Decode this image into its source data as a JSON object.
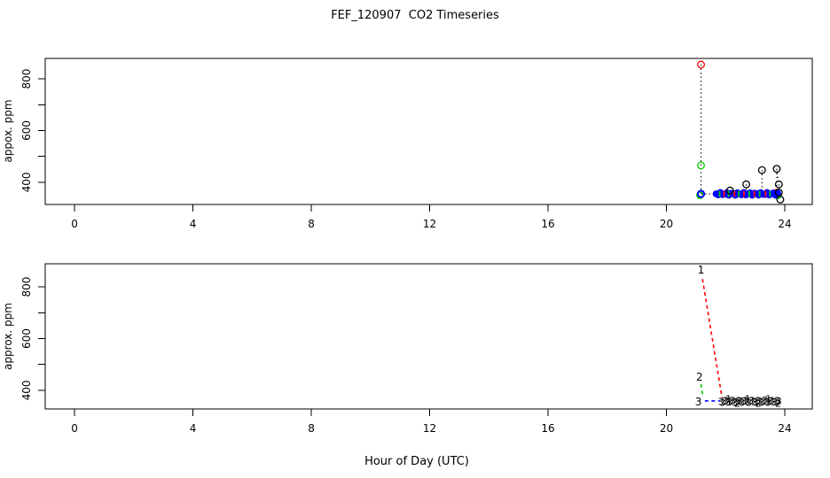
{
  "title": "FEF_120907  CO2 Timeseries",
  "xlabel": "Hour of Day (UTC)",
  "chart_data": [
    {
      "type": "scatter",
      "panel": "top",
      "ylabel": "appox. ppm",
      "xlim": [
        -0.99,
        24.93
      ],
      "ylim": [
        314,
        879
      ],
      "xtick_values": [
        0,
        4,
        8,
        12,
        16,
        20,
        24
      ],
      "xtick_labels": [
        "0",
        "4",
        "8",
        "12",
        "16",
        "20",
        "24"
      ],
      "ytick_values": [
        400,
        500,
        600,
        700,
        800
      ],
      "ytick_labels": [
        "400",
        "",
        "600",
        "",
        "800"
      ],
      "grid": false,
      "dotted_segments": [
        [
          21.17,
          855,
          21.17,
          355
        ],
        [
          21.17,
          355,
          21.72,
          355
        ],
        [
          22.15,
          368,
          22.15,
          356
        ],
        [
          22.7,
          392,
          22.7,
          356
        ],
        [
          23.23,
          447,
          23.23,
          356
        ],
        [
          23.73,
          452,
          23.73,
          356
        ],
        [
          23.73,
          452,
          23.8,
          392
        ],
        [
          23.8,
          392,
          23.85,
          333
        ]
      ],
      "open_points": [
        {
          "x": 21.17,
          "y": 855,
          "color": "#FF0000"
        },
        {
          "x": 21.17,
          "y": 465,
          "color": "#00CD00"
        },
        {
          "x": 22.15,
          "y": 368,
          "color": "#000000"
        },
        {
          "x": 22.7,
          "y": 392,
          "color": "#000000"
        },
        {
          "x": 23.23,
          "y": 447,
          "color": "#000000"
        },
        {
          "x": 23.73,
          "y": 452,
          "color": "#000000"
        },
        {
          "x": 23.8,
          "y": 392,
          "color": "#000000"
        },
        {
          "x": 23.8,
          "y": 360,
          "color": "#000000"
        },
        {
          "x": 23.85,
          "y": 333,
          "color": "#000000"
        }
      ],
      "behind_points": [
        {
          "x": 21.14,
          "y": 350,
          "color": "#00CD00"
        },
        {
          "x": 23.7,
          "y": 359,
          "color": "#FF0000"
        },
        {
          "x": 23.76,
          "y": 349,
          "color": "#00CD00"
        }
      ],
      "band": {
        "y": 355,
        "x_start": 21.68,
        "x_end": 23.76,
        "count": 30,
        "color": "#0000FF",
        "lead_point": {
          "x": 21.17,
          "y": 355
        }
      },
      "band_ticks": [
        {
          "x": 21.8,
          "color": "#00CD00"
        },
        {
          "x": 21.95,
          "color": "#FF0000"
        },
        {
          "x": 22.1,
          "color": "#00CD00"
        },
        {
          "x": 22.3,
          "color": "#FF0000"
        },
        {
          "x": 22.45,
          "color": "#00CD00"
        },
        {
          "x": 22.62,
          "color": "#FF0000"
        },
        {
          "x": 22.8,
          "color": "#00CD00"
        },
        {
          "x": 22.97,
          "color": "#FF0000"
        },
        {
          "x": 23.15,
          "color": "#00CD00"
        },
        {
          "x": 23.35,
          "color": "#FF0000"
        },
        {
          "x": 23.5,
          "color": "#00CD00"
        }
      ]
    },
    {
      "type": "line",
      "panel": "bottom",
      "ylabel": "approx. ppm",
      "xlim": [
        -0.99,
        24.93
      ],
      "ylim": [
        328,
        889
      ],
      "xtick_values": [
        0,
        4,
        8,
        12,
        16,
        20,
        24
      ],
      "xtick_labels": [
        "0",
        "4",
        "8",
        "12",
        "16",
        "20",
        "24"
      ],
      "ytick_values": [
        400,
        500,
        600,
        700,
        800
      ],
      "ytick_labels": [
        "400",
        "",
        "600",
        "",
        "800"
      ],
      "grid": false,
      "series": [
        {
          "label": "1",
          "color": "#FF0000",
          "label_x": 21.17,
          "label_y": 865,
          "line": [
            [
              21.22,
              830
            ],
            [
              21.88,
              372
            ]
          ]
        },
        {
          "label": "2",
          "color": "#00CD00",
          "label_x": 21.12,
          "label_y": 452,
          "line": [
            [
              21.17,
              424
            ],
            [
              21.23,
              374
            ]
          ]
        },
        {
          "label": "3",
          "color": "#0000FF",
          "label_x": 21.08,
          "label_y": 356,
          "line": [
            [
              21.3,
              359
            ],
            [
              21.82,
              359
            ]
          ],
          "glyph_band": {
            "char": "3",
            "y": 357,
            "x_start": 21.84,
            "x_end": 23.8,
            "count": 34
          },
          "under_glyphs": [
            {
              "char": "1",
              "color": "#FF0000",
              "x": 22.1
            },
            {
              "char": "2",
              "color": "#00CD00",
              "x": 22.4
            },
            {
              "char": "1",
              "color": "#FF0000",
              "x": 22.75
            },
            {
              "char": "2",
              "color": "#00CD00",
              "x": 23.1
            },
            {
              "char": "1",
              "color": "#FF0000",
              "x": 23.45
            },
            {
              "char": "2",
              "color": "#00CD00",
              "x": 23.78
            }
          ]
        }
      ]
    }
  ]
}
